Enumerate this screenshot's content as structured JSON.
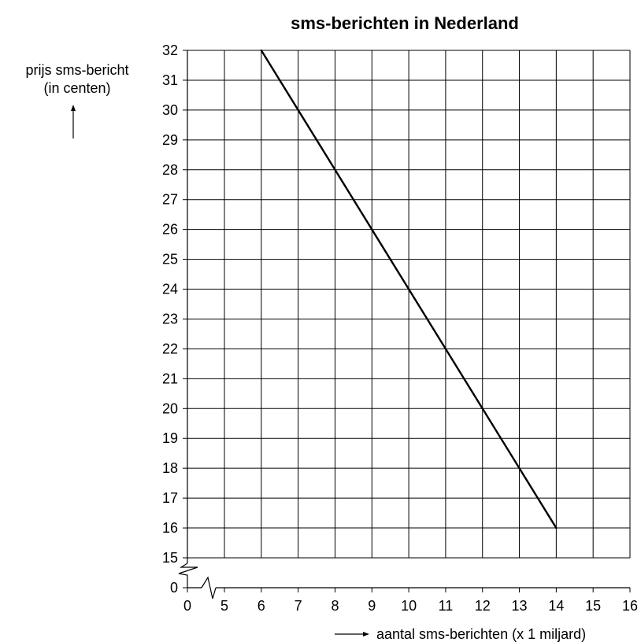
{
  "chart_data": {
    "type": "line",
    "title": "sms-berichten in Nederland",
    "ylabel_line1": "prijs sms-bericht",
    "ylabel_line2": "(in centen)",
    "xlabel": "aantal sms-berichten (x 1 miljard)",
    "x_ticks": [
      "0",
      "5",
      "6",
      "7",
      "8",
      "9",
      "10",
      "11",
      "12",
      "13",
      "14",
      "15",
      "16"
    ],
    "y_ticks": [
      "0",
      "15",
      "16",
      "17",
      "18",
      "19",
      "20",
      "21",
      "22",
      "23",
      "24",
      "25",
      "26",
      "27",
      "28",
      "29",
      "30",
      "31",
      "32"
    ],
    "xlim": [
      5,
      16
    ],
    "ylim": [
      15,
      32
    ],
    "axis_breaks": {
      "x": true,
      "y": true
    },
    "grid": true,
    "series": [
      {
        "x": [
          6,
          14
        ],
        "y": [
          32,
          16
        ]
      }
    ]
  }
}
